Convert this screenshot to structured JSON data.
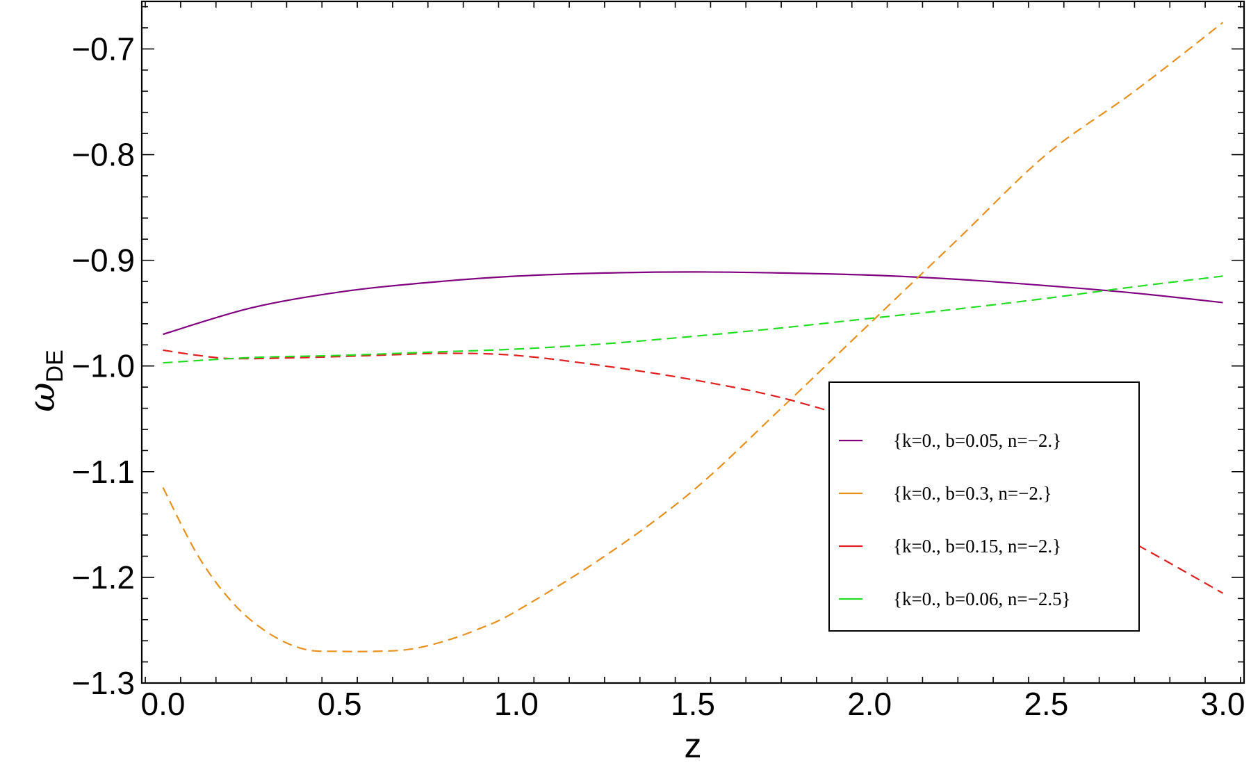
{
  "chart_data": {
    "type": "line",
    "xlabel": "z",
    "ylabel": {
      "symbol": "ω",
      "subscript": "DE"
    },
    "xlim": [
      -0.06,
      3.06
    ],
    "ylim": [
      -1.3,
      -0.655
    ],
    "xticks": [
      0.0,
      0.5,
      1.0,
      1.5,
      2.0,
      2.5,
      3.0
    ],
    "xtick_labels": [
      "0.0",
      "0.5",
      "1.0",
      "1.5",
      "2.0",
      "2.5",
      "3.0"
    ],
    "yticks": [
      -1.3,
      -1.2,
      -1.1,
      -1.0,
      -0.9,
      -0.8,
      -0.7
    ],
    "ytick_labels": [
      "−1.3",
      "−1.2",
      "−1.1",
      "−1.0",
      "−0.9",
      "−0.8",
      "−0.7"
    ],
    "grid": false,
    "legend_position": "lower-right",
    "series": [
      {
        "name": "{k=0., b=0.05, n=−2.}",
        "color": "#800080",
        "dash": "solid",
        "x": [
          0.0,
          0.25,
          0.5,
          0.75,
          1.0,
          1.25,
          1.5,
          1.75,
          2.0,
          2.25,
          2.5,
          2.75,
          3.0
        ],
        "y": [
          -0.97,
          -0.945,
          -0.93,
          -0.921,
          -0.915,
          -0.912,
          -0.911,
          -0.912,
          -0.914,
          -0.918,
          -0.924,
          -0.931,
          -0.94
        ]
      },
      {
        "name": "{k=0., b=0.3, n=−2.}",
        "color": "#E8901E",
        "dash": "dashed",
        "x": [
          0.0,
          0.1,
          0.2,
          0.3,
          0.4,
          0.5,
          0.6,
          0.7,
          0.8,
          0.9,
          1.0,
          1.25,
          1.5,
          1.75,
          2.0,
          2.25,
          2.5,
          2.75,
          3.0
        ],
        "y": [
          -1.115,
          -1.18,
          -1.225,
          -1.253,
          -1.268,
          -1.27,
          -1.27,
          -1.268,
          -1.26,
          -1.248,
          -1.232,
          -1.18,
          -1.118,
          -1.04,
          -0.96,
          -0.88,
          -0.8,
          -0.74,
          -0.675
        ]
      },
      {
        "name": "{k=0., b=0.15, n=−2.}",
        "color": "#E02020",
        "dash": "dashed",
        "x": [
          0.0,
          0.1,
          0.2,
          0.4,
          0.6,
          0.8,
          1.0,
          1.25,
          1.5,
          1.75,
          2.0,
          2.25,
          2.5,
          2.75,
          3.0
        ],
        "y": [
          -0.985,
          -0.99,
          -0.993,
          -0.992,
          -0.99,
          -0.988,
          -0.99,
          -1.0,
          -1.013,
          -1.03,
          -1.055,
          -1.087,
          -1.125,
          -1.168,
          -1.215
        ]
      },
      {
        "name": "{k=0., b=0.06, n=−2.5}",
        "color": "#22DD22",
        "dash": "dashed",
        "x": [
          0.0,
          0.25,
          0.5,
          0.75,
          1.0,
          1.25,
          1.5,
          1.75,
          2.0,
          2.25,
          2.5,
          2.75,
          3.0
        ],
        "y": [
          -0.997,
          -0.992,
          -0.99,
          -0.987,
          -0.984,
          -0.979,
          -0.972,
          -0.964,
          -0.955,
          -0.946,
          -0.936,
          -0.925,
          -0.915
        ]
      }
    ]
  }
}
